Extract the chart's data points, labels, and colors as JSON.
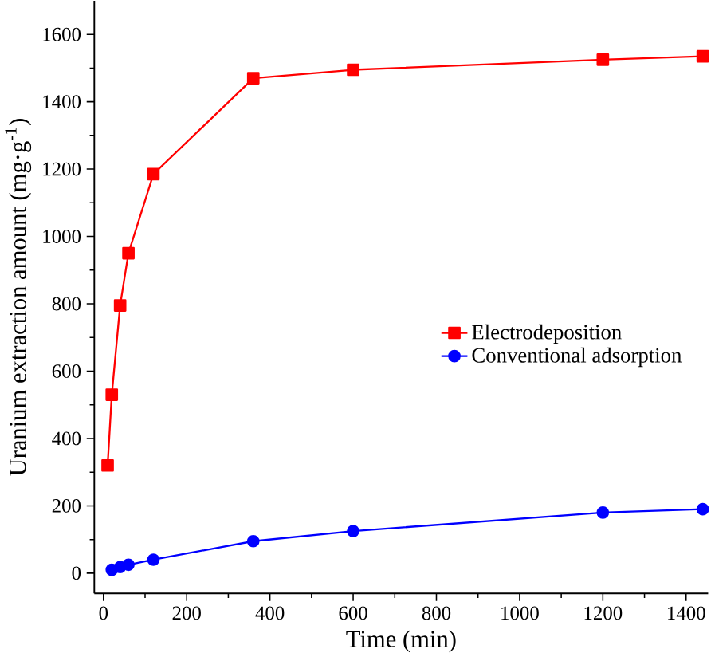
{
  "chart_data": {
    "type": "line",
    "xlabel": "Time (min)",
    "ylabel": "Uranium extraction amount (mg·g$^{-1}$)",
    "x": [
      10,
      20,
      40,
      60,
      120,
      360,
      600,
      1200,
      1440
    ],
    "series": [
      {
        "name": "Electrodeposition",
        "color": "#ff0000",
        "marker": "square",
        "values": [
          320,
          530,
          795,
          950,
          1185,
          1470,
          1495,
          1525,
          1535
        ]
      },
      {
        "name": "Conventional adsorption",
        "color": "#0000ff",
        "marker": "circle",
        "values": [
          null,
          10,
          18,
          25,
          40,
          95,
          125,
          180,
          190
        ]
      }
    ],
    "xlim": [
      -22,
      1453
    ],
    "ylim": [
      -60,
      1700
    ],
    "xticks": [
      0,
      200,
      400,
      600,
      800,
      1000,
      1200,
      1400
    ],
    "yticks": [
      0,
      200,
      400,
      600,
      800,
      1000,
      1200,
      1400,
      1600
    ],
    "grid": false,
    "legend": "right",
    "line_style": "solid"
  }
}
